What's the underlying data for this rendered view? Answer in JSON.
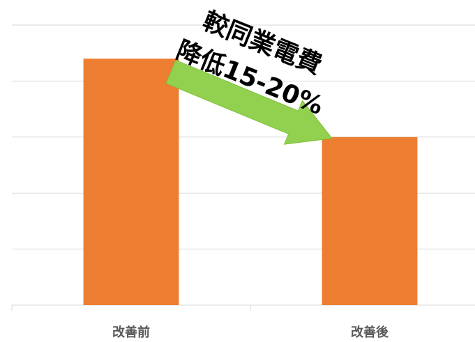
{
  "chart_data": {
    "type": "bar",
    "categories": [
      "改善前",
      "改善後"
    ],
    "values": [
      4.4,
      3.0
    ],
    "color": "#ed7d31",
    "ylim": [
      0,
      5
    ],
    "yticks": [
      0,
      1,
      2,
      3,
      4,
      5
    ],
    "grid": true,
    "annotation": [
      "較同業電費",
      "降低15-20%"
    ]
  }
}
